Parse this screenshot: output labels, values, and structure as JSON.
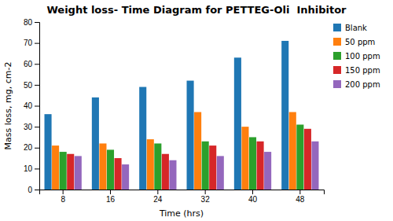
{
  "chart_data": {
    "type": "bar",
    "title": "Weight loss- Time Diagram for PETTEG-Oli  Inhibitor",
    "x_label": "Time (hrs)",
    "y_label": "Mass loss, mg, cm-2",
    "categories": [
      "8",
      "16",
      "24",
      "32",
      "40",
      "48"
    ],
    "series": [
      {
        "name": "Blank",
        "values": [
          36,
          44,
          49,
          52,
          63,
          71
        ]
      },
      {
        "name": "50 ppm",
        "values": [
          21,
          22,
          24,
          37,
          30,
          37
        ]
      },
      {
        "name": "100 ppm",
        "values": [
          18,
          19,
          22,
          23,
          25,
          31
        ]
      },
      {
        "name": "150 ppm",
        "values": [
          17,
          15,
          17,
          21,
          23,
          29
        ]
      },
      {
        "name": "200 ppm",
        "values": [
          16,
          12,
          14,
          16,
          18,
          23
        ]
      }
    ],
    "ylim": [
      0,
      80
    ],
    "yticks": [
      0,
      10,
      20,
      30,
      40,
      50,
      60,
      70,
      80
    ],
    "grid": false,
    "legend": "right"
  }
}
